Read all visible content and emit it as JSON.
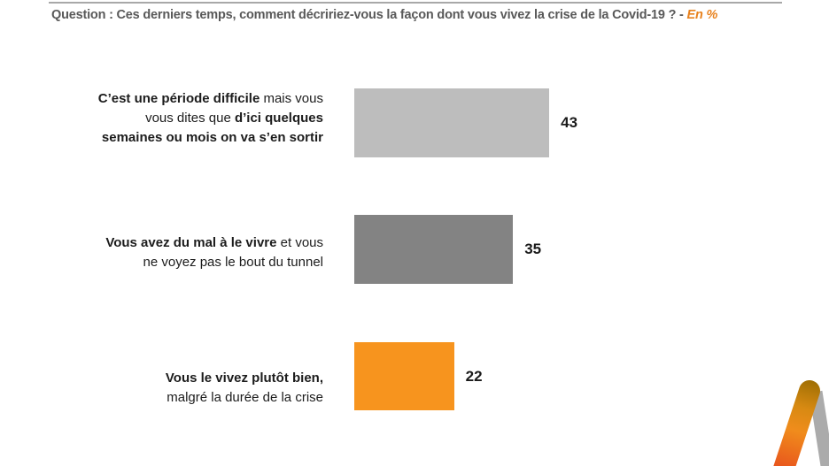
{
  "header": {
    "question": "Question : Ces derniers temps, comment décririez-vous la façon dont vous vivez la crise de la Covid-19 ? -",
    "unit": "En %"
  },
  "chart_data": {
    "type": "bar",
    "orientation": "horizontal",
    "title": "Question : Ces derniers temps, comment décririez-vous la façon dont vous vivez la crise de la Covid-19 ?",
    "unit": "En %",
    "categories": [
      "C’est une période difficile mais vous vous dites que d’ici quelques semaines ou mois on va s’en sortir",
      "Vous avez du mal à le vivre et vous ne voyez pas le bout du tunnel",
      "Vous le vivez plutôt bien, malgré la durée de la crise"
    ],
    "values": [
      43,
      35,
      22
    ],
    "colors": [
      "#bdbdbd",
      "#838383",
      "#f7941e"
    ],
    "value_labels": [
      "43",
      "35",
      "22"
    ],
    "value_label_position": "outside-end",
    "xlim": [
      0,
      100
    ],
    "grid": false,
    "legend": "none"
  },
  "rows": [
    {
      "value": 43,
      "value_label": "43",
      "color": "#bdbdbd",
      "lines": [
        {
          "segments": [
            {
              "text": "C’est une période difficile"
            },
            {
              "text": " mais vous"
            }
          ]
        },
        {
          "segments": [
            {
              "text": "vous dites que "
            },
            {
              "text": "d’ici quelques"
            }
          ]
        },
        {
          "segments": [
            {
              "text": "semaines ou mois on va s’en sortir"
            }
          ]
        }
      ]
    },
    {
      "value": 35,
      "value_label": "35",
      "color": "#838383",
      "lines": [
        {
          "segments": [
            {
              "text": "Vous avez du mal à le vivre"
            },
            {
              "text": " et vous"
            }
          ]
        },
        {
          "segments": [
            {
              "text": "ne voyez pas le bout du tunnel"
            }
          ]
        }
      ]
    },
    {
      "value": 22,
      "value_label": "22",
      "color": "#f7941e",
      "lines": [
        {
          "segments": [
            {
              "text": "Vous le vivez plutôt bien,"
            }
          ]
        },
        {
          "segments": [
            {
              "text": "malgré la durée de la crise"
            }
          ]
        }
      ]
    }
  ],
  "logo": {
    "orange_top": "#a06f04",
    "orange_upper_mid": "#d88a12",
    "orange_lower_mid": "#f08c1c",
    "orange_bottom": "#e8521d",
    "gray": "#ababab"
  }
}
